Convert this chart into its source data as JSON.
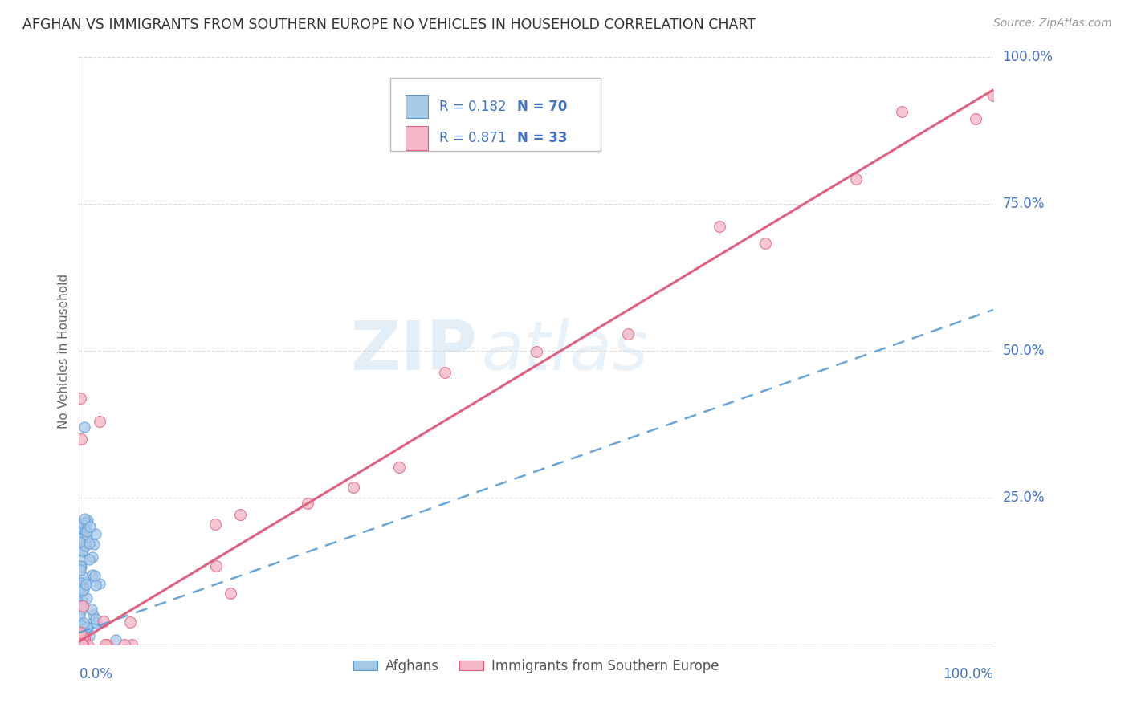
{
  "title": "AFGHAN VS IMMIGRANTS FROM SOUTHERN EUROPE NO VEHICLES IN HOUSEHOLD CORRELATION CHART",
  "source": "Source: ZipAtlas.com",
  "ylabel": "No Vehicles in Household",
  "r_afghan": 0.182,
  "n_afghan": 70,
  "r_southern_europe": 0.871,
  "n_southern_europe": 33,
  "color_afghan_fill": "#a8c8e8",
  "color_afghan_edge": "#5b9bd5",
  "color_se_fill": "#f4b8c8",
  "color_se_edge": "#e06080",
  "color_afghan_line": "#5b9bd5",
  "color_se_line": "#e06080",
  "color_title": "#333333",
  "color_source": "#999999",
  "color_tick": "#4472c4",
  "color_grid": "#cccccc",
  "color_legend_text_r": "#4472c4",
  "color_legend_text_n": "#4472c4",
  "legend_label_afghan": "Afghans",
  "legend_label_se": "Immigrants from Southern Europe",
  "afghan_line_slope": 0.55,
  "afghan_line_intercept": 0.02,
  "se_line_slope": 0.94,
  "se_line_intercept": 0.005
}
